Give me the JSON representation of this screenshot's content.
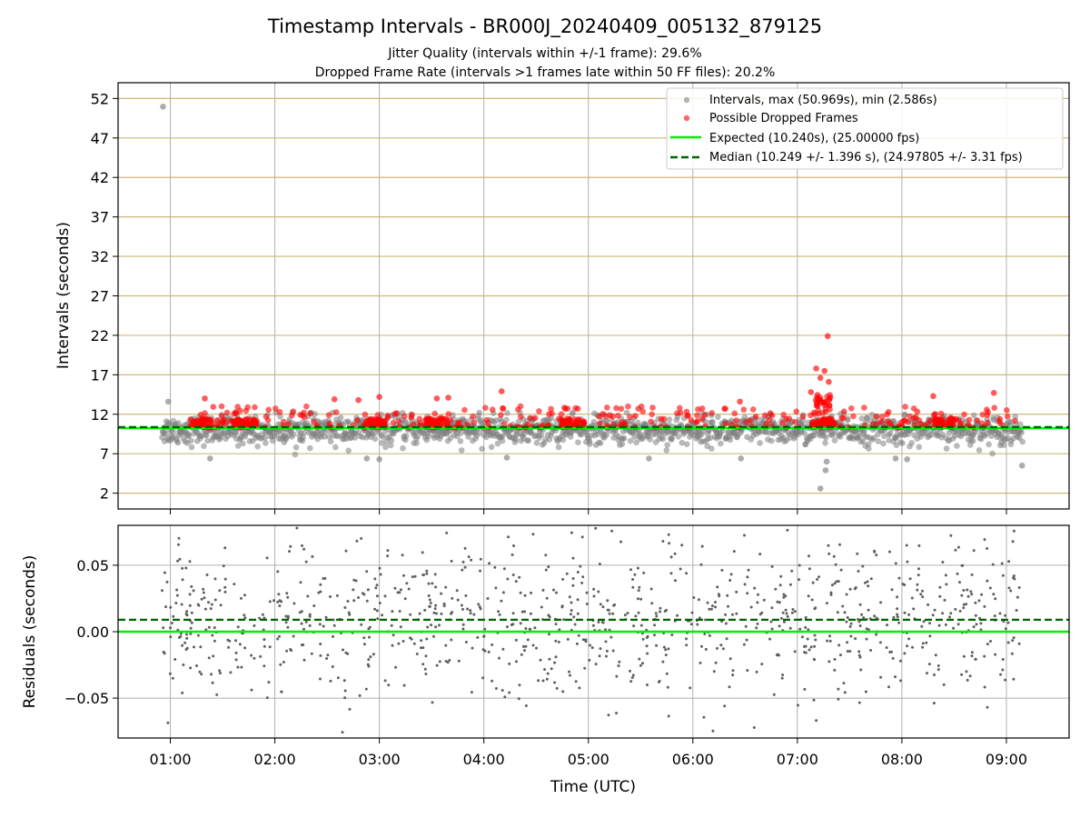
{
  "figure": {
    "title": "Timestamp Intervals - BR000J_20240409_005132_879125",
    "subtitle_line1": "Jitter Quality (intervals within +/-1 frame): 29.6%",
    "subtitle_line2": "Dropped Frame Rate (intervals >1 frames late within 50 FF files): 20.2%"
  },
  "chart_data": [
    {
      "type": "scatter",
      "title": "",
      "xlabel": "",
      "ylabel": "Intervals (seconds)",
      "xlim_hours": [
        0.5,
        9.6
      ],
      "ylim": [
        0,
        54
      ],
      "yticks": [
        2,
        7,
        12,
        17,
        22,
        27,
        32,
        37,
        42,
        47,
        52
      ],
      "xticks_hours": [
        1,
        2,
        3,
        4,
        5,
        6,
        7,
        8,
        9
      ],
      "grid": "on",
      "legend": {
        "placement": "top-right",
        "entries": [
          "Intervals, max (50.969s), min (2.586s)",
          "Possible Dropped Frames",
          "Expected (10.240s), (25.00000 fps)",
          "Median (10.249 +/- 1.396 s), (24.97805 +/- 3.31 fps)"
        ]
      },
      "series": [
        {
          "name": "Intervals, max (50.969s), min (2.586s)",
          "kind": "points",
          "color": "#808080",
          "x_range_hours": [
            0.92,
            9.15
          ],
          "typical_range": [
            7.5,
            12.2
          ],
          "outliers": [
            {
              "x": 0.93,
              "y": 50.97
            },
            {
              "x": 7.22,
              "y": 2.59
            },
            {
              "x": 7.27,
              "y": 4.9
            },
            {
              "x": 7.28,
              "y": 6.0
            },
            {
              "x": 1.38,
              "y": 6.4
            },
            {
              "x": 2.88,
              "y": 6.4
            },
            {
              "x": 3.0,
              "y": 6.3
            },
            {
              "x": 4.22,
              "y": 6.5
            },
            {
              "x": 5.58,
              "y": 6.4
            },
            {
              "x": 6.46,
              "y": 6.4
            },
            {
              "x": 7.94,
              "y": 6.4
            },
            {
              "x": 8.05,
              "y": 6.3
            },
            {
              "x": 9.15,
              "y": 5.5
            },
            {
              "x": 0.98,
              "y": 13.6
            }
          ]
        },
        {
          "name": "Possible Dropped Frames",
          "kind": "points",
          "color": "#ff0000",
          "typical_range": [
            10.3,
            13.0
          ],
          "clusters_hours": [
            1.3,
            1.72,
            2.95,
            3.55,
            4.85,
            7.25,
            8.4
          ],
          "outliers": [
            {
              "x": 7.29,
              "y": 21.9
            },
            {
              "x": 7.18,
              "y": 17.8
            },
            {
              "x": 7.22,
              "y": 16.6
            },
            {
              "x": 7.26,
              "y": 17.5
            },
            {
              "x": 7.3,
              "y": 16.1
            },
            {
              "x": 7.13,
              "y": 14.8
            },
            {
              "x": 4.17,
              "y": 14.9
            },
            {
              "x": 8.88,
              "y": 14.7
            },
            {
              "x": 8.3,
              "y": 14.3
            },
            {
              "x": 3.0,
              "y": 14.2
            },
            {
              "x": 1.33,
              "y": 14.0
            },
            {
              "x": 3.55,
              "y": 14.0
            },
            {
              "x": 3.66,
              "y": 14.1
            },
            {
              "x": 2.8,
              "y": 13.8
            },
            {
              "x": 2.57,
              "y": 13.9
            },
            {
              "x": 6.45,
              "y": 13.6
            }
          ]
        },
        {
          "name": "Expected (10.240s), (25.00000 fps)",
          "kind": "hline",
          "color": "#00ee00",
          "y": 10.24
        },
        {
          "name": "Median (10.249 +/- 1.396 s), (24.97805 +/- 3.31 fps)",
          "kind": "hline_dashed",
          "color": "#006400",
          "y": 10.249
        }
      ]
    },
    {
      "type": "scatter",
      "title": "",
      "xlabel": "Time (UTC)",
      "ylabel": "Residuals (seconds)",
      "xlim_hours": [
        0.5,
        9.6
      ],
      "ylim": [
        -0.08,
        0.08
      ],
      "yticks": [
        -0.05,
        0.0,
        0.05
      ],
      "ytick_labels": [
        "−0.05",
        "0.00",
        "0.05"
      ],
      "xticks_hours": [
        1,
        2,
        3,
        4,
        5,
        6,
        7,
        8,
        9
      ],
      "xtick_labels": [
        "01:00",
        "02:00",
        "03:00",
        "04:00",
        "05:00",
        "06:00",
        "07:00",
        "08:00",
        "09:00"
      ],
      "grid": "on",
      "series": [
        {
          "kind": "points",
          "color": "#606060",
          "x_range_hours": [
            0.92,
            9.15
          ],
          "spread": 0.03
        },
        {
          "kind": "hline",
          "color": "#00ee00",
          "y": 0.0
        },
        {
          "kind": "hline_dashed",
          "color": "#006400",
          "y": 0.009
        }
      ]
    }
  ]
}
